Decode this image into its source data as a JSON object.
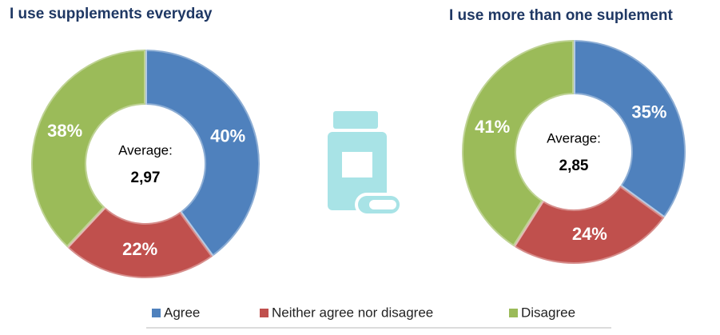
{
  "chart_data": [
    {
      "type": "pie",
      "title": "I use supplements everyday",
      "categories": [
        "Agree",
        "Neither agree nor disagree",
        "Disagree"
      ],
      "values": [
        40,
        22,
        38
      ],
      "value_labels": [
        "40%",
        "22%",
        "38%"
      ],
      "colors": [
        "#4f81bd",
        "#c0504d",
        "#9bbb59"
      ],
      "center_text": "Average:",
      "average": {
        "value": 2.97,
        "label": "2,97"
      }
    },
    {
      "type": "pie",
      "title": "I use more than one suplement",
      "categories": [
        "Agree",
        "Neither agree nor disagree",
        "Disagree"
      ],
      "values": [
        35,
        24,
        41
      ],
      "value_labels": [
        "35%",
        "24%",
        "41%"
      ],
      "colors": [
        "#4f81bd",
        "#c0504d",
        "#9bbb59"
      ],
      "center_text": "Average:",
      "average": {
        "value": 2.85,
        "label": "2,85"
      }
    }
  ]
}
